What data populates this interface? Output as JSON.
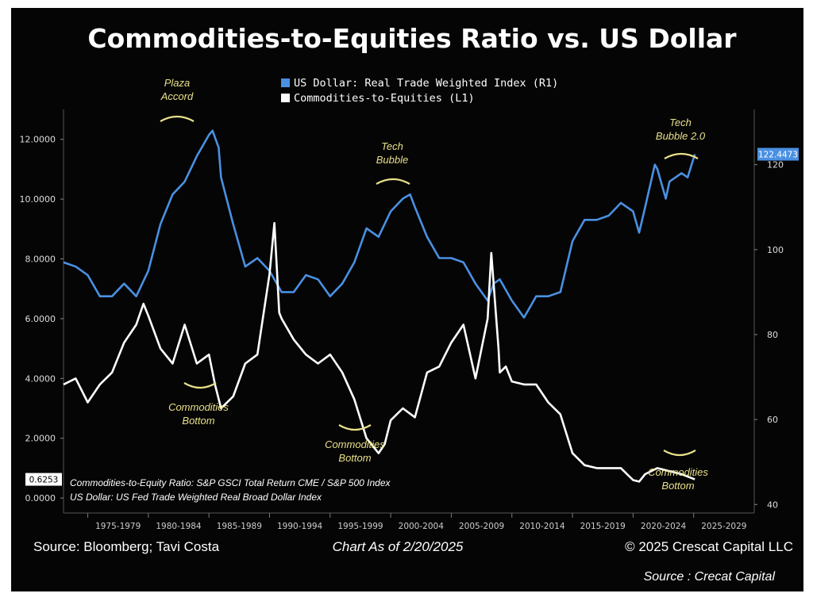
{
  "chart_data": {
    "type": "line",
    "title": "Commodities-to-Equities Ratio vs. US Dollar",
    "x_range": [
      1973,
      2030
    ],
    "x_tick_labels": [
      "1975-1979",
      "1980-1984",
      "1985-1989",
      "1990-1994",
      "1995-1999",
      "2000-2004",
      "2005-2009",
      "2010-2014",
      "2015-2019",
      "2020-2024",
      "2025-2029"
    ],
    "left_axis": {
      "range": [
        -0.5,
        13.0
      ],
      "ticks": [
        "0.0000",
        "2.0000",
        "4.0000",
        "6.0000",
        "8.0000",
        "10.0000",
        "12.0000"
      ],
      "tick_values": [
        0,
        2,
        4,
        6,
        8,
        10,
        12
      ]
    },
    "right_axis": {
      "range": [
        38,
        133
      ],
      "ticks": [
        "40",
        "60",
        "80",
        "100",
        "120"
      ],
      "tick_values": [
        40,
        60,
        80,
        100,
        120
      ]
    },
    "legend": [
      {
        "label": "US Dollar: Real Trade Weighted Index (R1)",
        "color": "#4a90e2"
      },
      {
        "label": "Commodities-to-Equities (L1)",
        "color": "#ffffff"
      }
    ],
    "last_value_labels": {
      "dollar": "122.4473",
      "ratio": "0.6253"
    },
    "series": [
      {
        "name": "US Dollar: Real Trade Weighted Index (R1)",
        "axis": "right",
        "color": "#4a90e2",
        "x": [
          1973,
          1974,
          1975,
          1976,
          1977,
          1978,
          1979,
          1980,
          1981,
          1982,
          1983,
          1984,
          1985,
          1985.3,
          1985.8,
          1986,
          1987,
          1988,
          1989,
          1990,
          1991,
          1992,
          1993,
          1994,
          1995,
          1996,
          1997,
          1998,
          1999,
          2000,
          2001,
          2001.6,
          2002,
          2003,
          2004,
          2005,
          2006,
          2007,
          2008,
          2008.5,
          2009,
          2010,
          2011,
          2011.6,
          2012,
          2013,
          2014,
          2015,
          2016,
          2017,
          2018,
          2019,
          2020,
          2020.5,
          2021,
          2021.8,
          2022,
          2022.7,
          2023,
          2024,
          2024.5,
          2025.1
        ],
        "y": [
          97,
          96,
          94,
          89,
          89,
          92,
          89,
          95,
          106,
          113,
          116,
          122,
          127,
          128,
          124,
          117,
          106,
          96,
          98,
          95,
          90,
          90,
          94,
          93,
          89,
          92,
          97,
          105,
          103,
          109,
          112,
          113,
          110,
          103,
          98,
          98,
          97,
          92,
          88,
          92,
          93,
          88,
          84,
          87,
          89,
          89,
          90,
          102,
          107,
          107,
          108,
          111,
          109,
          104,
          110,
          120,
          119,
          112,
          116,
          118,
          117,
          122.4473
        ]
      },
      {
        "name": "Commodities-to-Equities (L1)",
        "axis": "left",
        "color": "#ffffff",
        "x": [
          1973,
          1974,
          1975,
          1976,
          1977,
          1978,
          1979,
          1979.6,
          1980,
          1981,
          1982,
          1983,
          1984,
          1985,
          1985.5,
          1986,
          1987,
          1988,
          1989,
          1990,
          1990.4,
          1990.8,
          1991,
          1992,
          1993,
          1994,
          1995,
          1996,
          1997,
          1998,
          1999,
          1999.5,
          2000,
          2001,
          2002,
          2003,
          2004,
          2005,
          2006,
          2007,
          2008,
          2008.3,
          2008.9,
          2009,
          2009.5,
          2010,
          2011,
          2012,
          2013,
          2014,
          2015,
          2016,
          2017,
          2018,
          2019,
          2020,
          2020.5,
          2021,
          2022,
          2023,
          2024,
          2025.1
        ],
        "y": [
          3.8,
          4.0,
          3.2,
          3.8,
          4.2,
          5.2,
          5.8,
          6.5,
          6.1,
          5.0,
          4.5,
          5.8,
          4.5,
          4.8,
          3.8,
          3.0,
          3.4,
          4.5,
          4.8,
          7.5,
          9.2,
          6.2,
          6.0,
          5.3,
          4.8,
          4.5,
          4.8,
          4.2,
          3.3,
          2.0,
          1.5,
          1.8,
          2.6,
          3.0,
          2.7,
          4.2,
          4.4,
          5.2,
          5.8,
          4.0,
          6.0,
          8.2,
          5.0,
          4.2,
          4.4,
          3.9,
          3.8,
          3.8,
          3.2,
          2.8,
          1.5,
          1.1,
          1.0,
          1.0,
          1.0,
          0.6,
          0.55,
          0.8,
          1.0,
          0.9,
          0.8,
          0.6253
        ]
      }
    ],
    "annotations": [
      {
        "text": [
          "Plaza",
          "Accord"
        ]
      },
      {
        "text": [
          "Tech",
          "Bubble"
        ]
      },
      {
        "text": [
          "Tech",
          "Bubble 2.0"
        ]
      },
      {
        "text": [
          "Commodities",
          "Bottom"
        ]
      },
      {
        "text": [
          "Commodities",
          "Bottom"
        ]
      },
      {
        "text": [
          "Commodities",
          "Bottom"
        ]
      }
    ],
    "notes": [
      "Commodities-to-Equity Ratio: S&P GSCI Total Return CME / S&P 500 Index",
      "US Dollar: US Fed Trade Weighted Real Broad Dollar Index"
    ],
    "footer": {
      "left": "Source: Bloomberg; Tavi Costa",
      "center": "Chart As of 2/20/2025",
      "right": "© 2025 Crescat Capital LLC"
    },
    "credit": "Source : Crecat Capital"
  }
}
